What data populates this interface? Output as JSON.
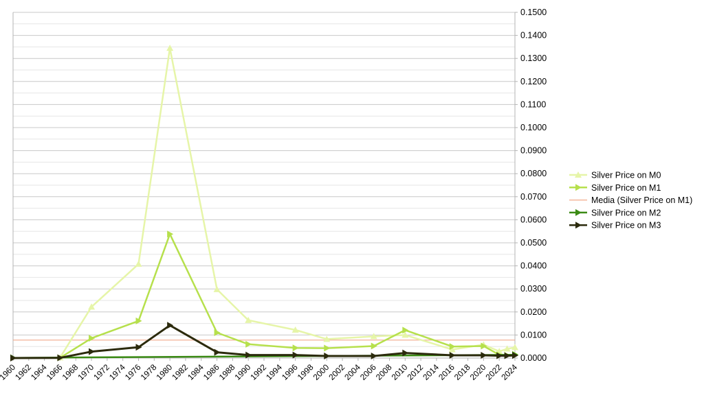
{
  "chart_data": {
    "type": "line",
    "title": "",
    "xlabel": "",
    "ylabel": "",
    "x_ticks": [
      "1960",
      "1962",
      "1964",
      "1966",
      "1968",
      "1970",
      "1972",
      "1974",
      "1976",
      "1978",
      "1980",
      "1982",
      "1984",
      "1986",
      "1988",
      "1990",
      "1992",
      "1994",
      "1996",
      "1998",
      "2000",
      "2002",
      "2004",
      "2006",
      "2008",
      "2010",
      "2012",
      "2014",
      "2016",
      "2018",
      "2020",
      "2022",
      "2024"
    ],
    "y_ticks": [
      "0.0000",
      "0.0100",
      "0.0200",
      "0.0300",
      "0.0400",
      "0.0500",
      "0.0600",
      "0.0700",
      "0.0800",
      "0.0900",
      "0.1000",
      "0.1100",
      "0.1200",
      "0.1300",
      "0.1400",
      "0.1500"
    ],
    "xlim": [
      1960,
      2024
    ],
    "ylim": [
      0,
      0.15
    ],
    "grid": true,
    "legend_position": "right",
    "series": [
      {
        "name": "Silver Price on M0",
        "color": "#e6f5a8",
        "marker": "triangle-up",
        "points": [
          [
            1966,
            0.0002
          ],
          [
            1970,
            0.0222
          ],
          [
            1976,
            0.0408
          ],
          [
            1980,
            0.1345
          ],
          [
            1986,
            0.0298
          ],
          [
            1990,
            0.0164
          ],
          [
            1996,
            0.0122
          ],
          [
            2000,
            0.0082
          ],
          [
            2006,
            0.0094
          ],
          [
            2010,
            0.01
          ],
          [
            2016,
            0.0037
          ],
          [
            2020,
            0.0058
          ],
          [
            2022,
            0.0029
          ],
          [
            2023,
            0.004
          ],
          [
            2024,
            0.0046
          ]
        ]
      },
      {
        "name": "Silver Price on M1",
        "color": "#b6e04c",
        "marker": "triangle-right",
        "points": [
          [
            1966,
            0.0001
          ],
          [
            1970,
            0.0086
          ],
          [
            1976,
            0.0161
          ],
          [
            1980,
            0.0538
          ],
          [
            1986,
            0.011
          ],
          [
            1990,
            0.006
          ],
          [
            1996,
            0.0044
          ],
          [
            2000,
            0.0043
          ],
          [
            2006,
            0.0052
          ],
          [
            2010,
            0.0121
          ],
          [
            2016,
            0.005
          ],
          [
            2020,
            0.0052
          ],
          [
            2022,
            0.0014
          ],
          [
            2023,
            0.0012
          ],
          [
            2024,
            0.0016
          ]
        ]
      },
      {
        "name": "Media (Silver Price on M1)",
        "color": "#f2a98a",
        "marker": "none",
        "constant": 0.0078
      },
      {
        "name": "Silver Price on M2",
        "color": "#3a8a14",
        "marker": "triangle-right",
        "points": [
          [
            1960,
            0.0001
          ],
          [
            2024,
            0.0014
          ]
        ]
      },
      {
        "name": "Silver Price on M3",
        "color": "#2b2a0c",
        "marker": "triangle-right",
        "points": [
          [
            1960,
            0.0
          ],
          [
            1966,
            0.0001
          ],
          [
            1970,
            0.0028
          ],
          [
            1976,
            0.0047
          ],
          [
            1980,
            0.0142
          ],
          [
            1986,
            0.0025
          ],
          [
            1990,
            0.0013
          ],
          [
            1996,
            0.0013
          ],
          [
            2000,
            0.0009
          ],
          [
            2006,
            0.0009
          ],
          [
            2010,
            0.0022
          ],
          [
            2016,
            0.0012
          ],
          [
            2020,
            0.0012
          ],
          [
            2022,
            0.001
          ],
          [
            2023,
            0.001
          ],
          [
            2024,
            0.0011
          ]
        ]
      }
    ]
  }
}
